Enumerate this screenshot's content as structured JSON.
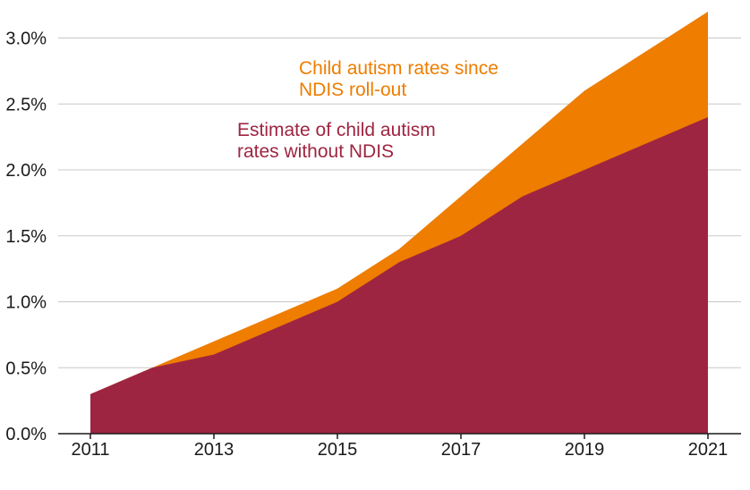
{
  "chart_data": {
    "type": "area",
    "title": "",
    "xlabel": "",
    "ylabel": "",
    "x": [
      2011,
      2012,
      2013,
      2014,
      2015,
      2016,
      2017,
      2018,
      2019,
      2020,
      2021
    ],
    "xlim": [
      2011,
      2021
    ],
    "ylim": [
      0,
      3.2
    ],
    "x_ticks": [
      "2011",
      "2013",
      "2015",
      "2017",
      "2019",
      "2021"
    ],
    "x_tick_values": [
      2011,
      2013,
      2015,
      2017,
      2019,
      2021
    ],
    "y_ticks": [
      "0.0%",
      "0.5%",
      "1.0%",
      "1.5%",
      "2.0%",
      "2.5%",
      "3.0%"
    ],
    "y_tick_values": [
      0,
      0.5,
      1.0,
      1.5,
      2.0,
      2.5,
      3.0
    ],
    "grid": true,
    "series": [
      {
        "color": "#ee7d00",
        "values": [
          0.3,
          0.5,
          0.7,
          0.9,
          1.1,
          1.4,
          1.8,
          2.2,
          2.6,
          2.9,
          3.2
        ]
      },
      {
        "color": "#9e2541",
        "values": [
          0.3,
          0.5,
          0.6,
          0.8,
          1.0,
          1.3,
          1.5,
          1.8,
          2.0,
          2.2,
          2.4
        ]
      }
    ],
    "annotations": [
      {
        "lines": [
          "Child autism rates since",
          "NDIS roll-out"
        ],
        "color": "#ee7d00"
      },
      {
        "lines": [
          "Estimate of child autism",
          "rates without NDIS"
        ],
        "color": "#9e2541"
      }
    ]
  }
}
